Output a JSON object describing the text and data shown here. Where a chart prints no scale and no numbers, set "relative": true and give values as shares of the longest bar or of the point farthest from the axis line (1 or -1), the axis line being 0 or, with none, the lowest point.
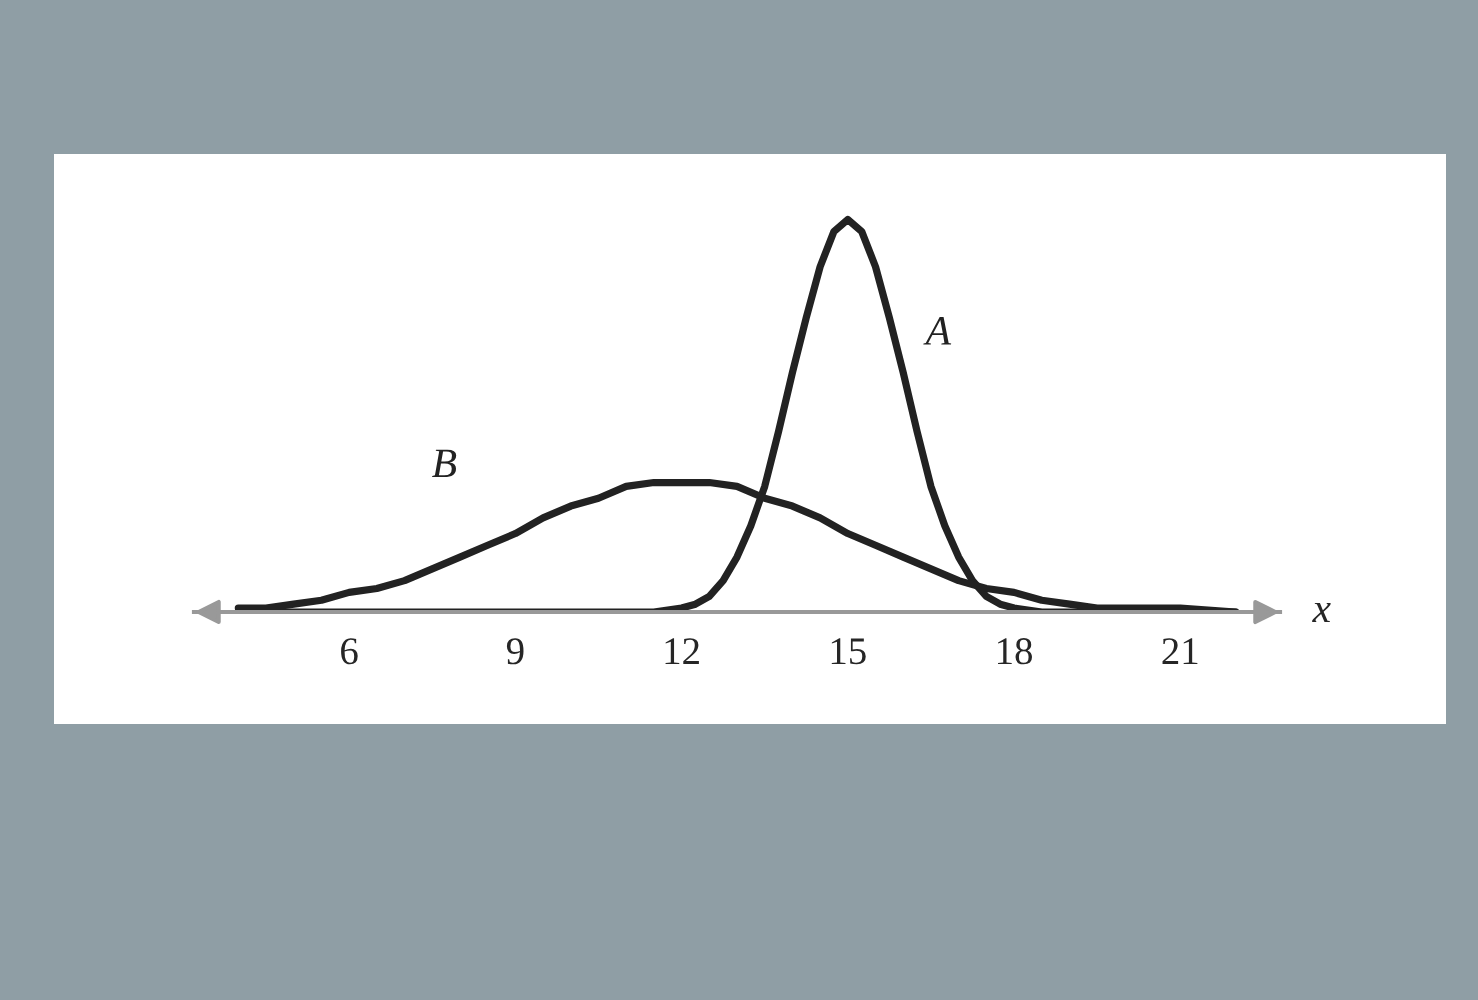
{
  "chart_data": {
    "type": "line",
    "relative": true,
    "xlabel": "x",
    "xlim": [
      3.2,
      22.8
    ],
    "xticks": [
      6,
      9,
      12,
      15,
      18,
      21
    ],
    "grid": false,
    "legend": false,
    "marker": "none",
    "line_style": "solid",
    "series": [
      {
        "name": "A",
        "color": "#222222",
        "x": [
          4,
          6,
          8,
          10,
          11,
          11.5,
          12,
          12.25,
          12.5,
          12.75,
          13,
          13.25,
          13.5,
          13.75,
          14,
          14.25,
          14.5,
          14.75,
          15,
          15.25,
          15.5,
          15.75,
          16,
          16.25,
          16.5,
          16.75,
          17,
          17.25,
          17.5,
          17.75,
          18,
          18.5,
          19,
          20,
          21,
          22
        ],
        "values": [
          0,
          0,
          0,
          0,
          0,
          0.0,
          0.01,
          0.02,
          0.04,
          0.08,
          0.14,
          0.22,
          0.32,
          0.46,
          0.61,
          0.75,
          0.88,
          0.97,
          1,
          0.97,
          0.88,
          0.75,
          0.61,
          0.46,
          0.32,
          0.22,
          0.14,
          0.08,
          0.04,
          0.02,
          0.01,
          0.0,
          0,
          0,
          0,
          0
        ]
      },
      {
        "name": "B",
        "color": "#222222",
        "x": [
          4,
          4.5,
          5,
          5.5,
          6,
          6.5,
          7,
          7.5,
          8,
          8.5,
          9,
          9.5,
          10,
          10.5,
          11,
          11.5,
          12,
          12.5,
          13,
          13.5,
          14,
          14.5,
          15,
          15.5,
          16,
          16.5,
          17,
          17.5,
          18,
          18.5,
          19,
          19.5,
          20,
          21,
          22
        ],
        "values": [
          0.01,
          0.01,
          0.02,
          0.03,
          0.05,
          0.06,
          0.08,
          0.11,
          0.14,
          0.17,
          0.2,
          0.24,
          0.27,
          0.29,
          0.32,
          0.33,
          0.33,
          0.33,
          0.32,
          0.29,
          0.27,
          0.24,
          0.2,
          0.17,
          0.14,
          0.11,
          0.08,
          0.06,
          0.05,
          0.03,
          0.02,
          0.01,
          0.01,
          0.01,
          0.0
        ]
      }
    ]
  }
}
